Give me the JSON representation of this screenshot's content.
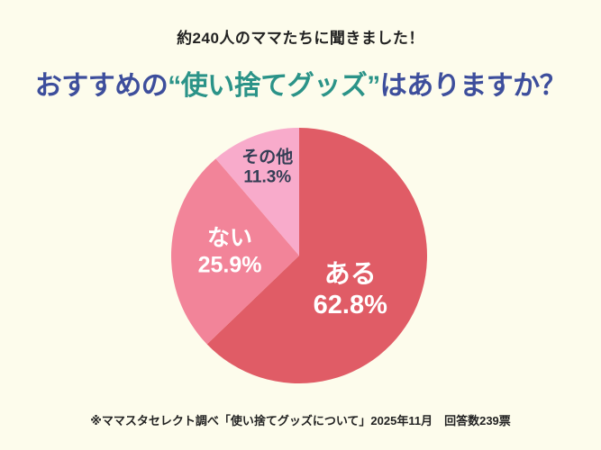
{
  "header": {
    "subtitle": "約240人のママたちに聞きました！",
    "title_part1": "おすすめの",
    "title_part2": "“使い捨てグッズ”",
    "title_part3": "はありますか？",
    "title_color_main": "#3D4E9C",
    "title_color_accent": "#2B9388"
  },
  "footer": {
    "source_note": "※ママスタセレクト調べ「使い捨てグッズについて」2025年11月　回答数239票"
  },
  "colors": {
    "background": "#FDFCEC",
    "text_dark": "#222222"
  },
  "chart_data": {
    "type": "pie",
    "title": "おすすめの“使い捨てグッズ”はありますか？",
    "unit": "%",
    "start_angle_deg": 0,
    "direction": "clockwise",
    "legend_position": "none",
    "labels_inside": true,
    "respondents_note": "回答数239票",
    "slices": [
      {
        "label": "ある",
        "value": 62.8,
        "display": "62.8%",
        "color": "#E05C66",
        "text_color": "#FFFFFF",
        "label_pos": [
          0.7,
          0.633
        ],
        "font_px": 29
      },
      {
        "label": "ない",
        "value": 25.9,
        "display": "25.9%",
        "color": "#F28499",
        "text_color": "#FFFFFF",
        "label_pos": [
          0.229,
          0.486
        ],
        "font_px": 25
      },
      {
        "label": "その他",
        "value": 11.3,
        "display": "11.3%",
        "color": "#F8ABCB",
        "text_color": "#343E55",
        "label_pos": [
          0.376,
          0.158
        ],
        "font_px": 19
      }
    ]
  }
}
